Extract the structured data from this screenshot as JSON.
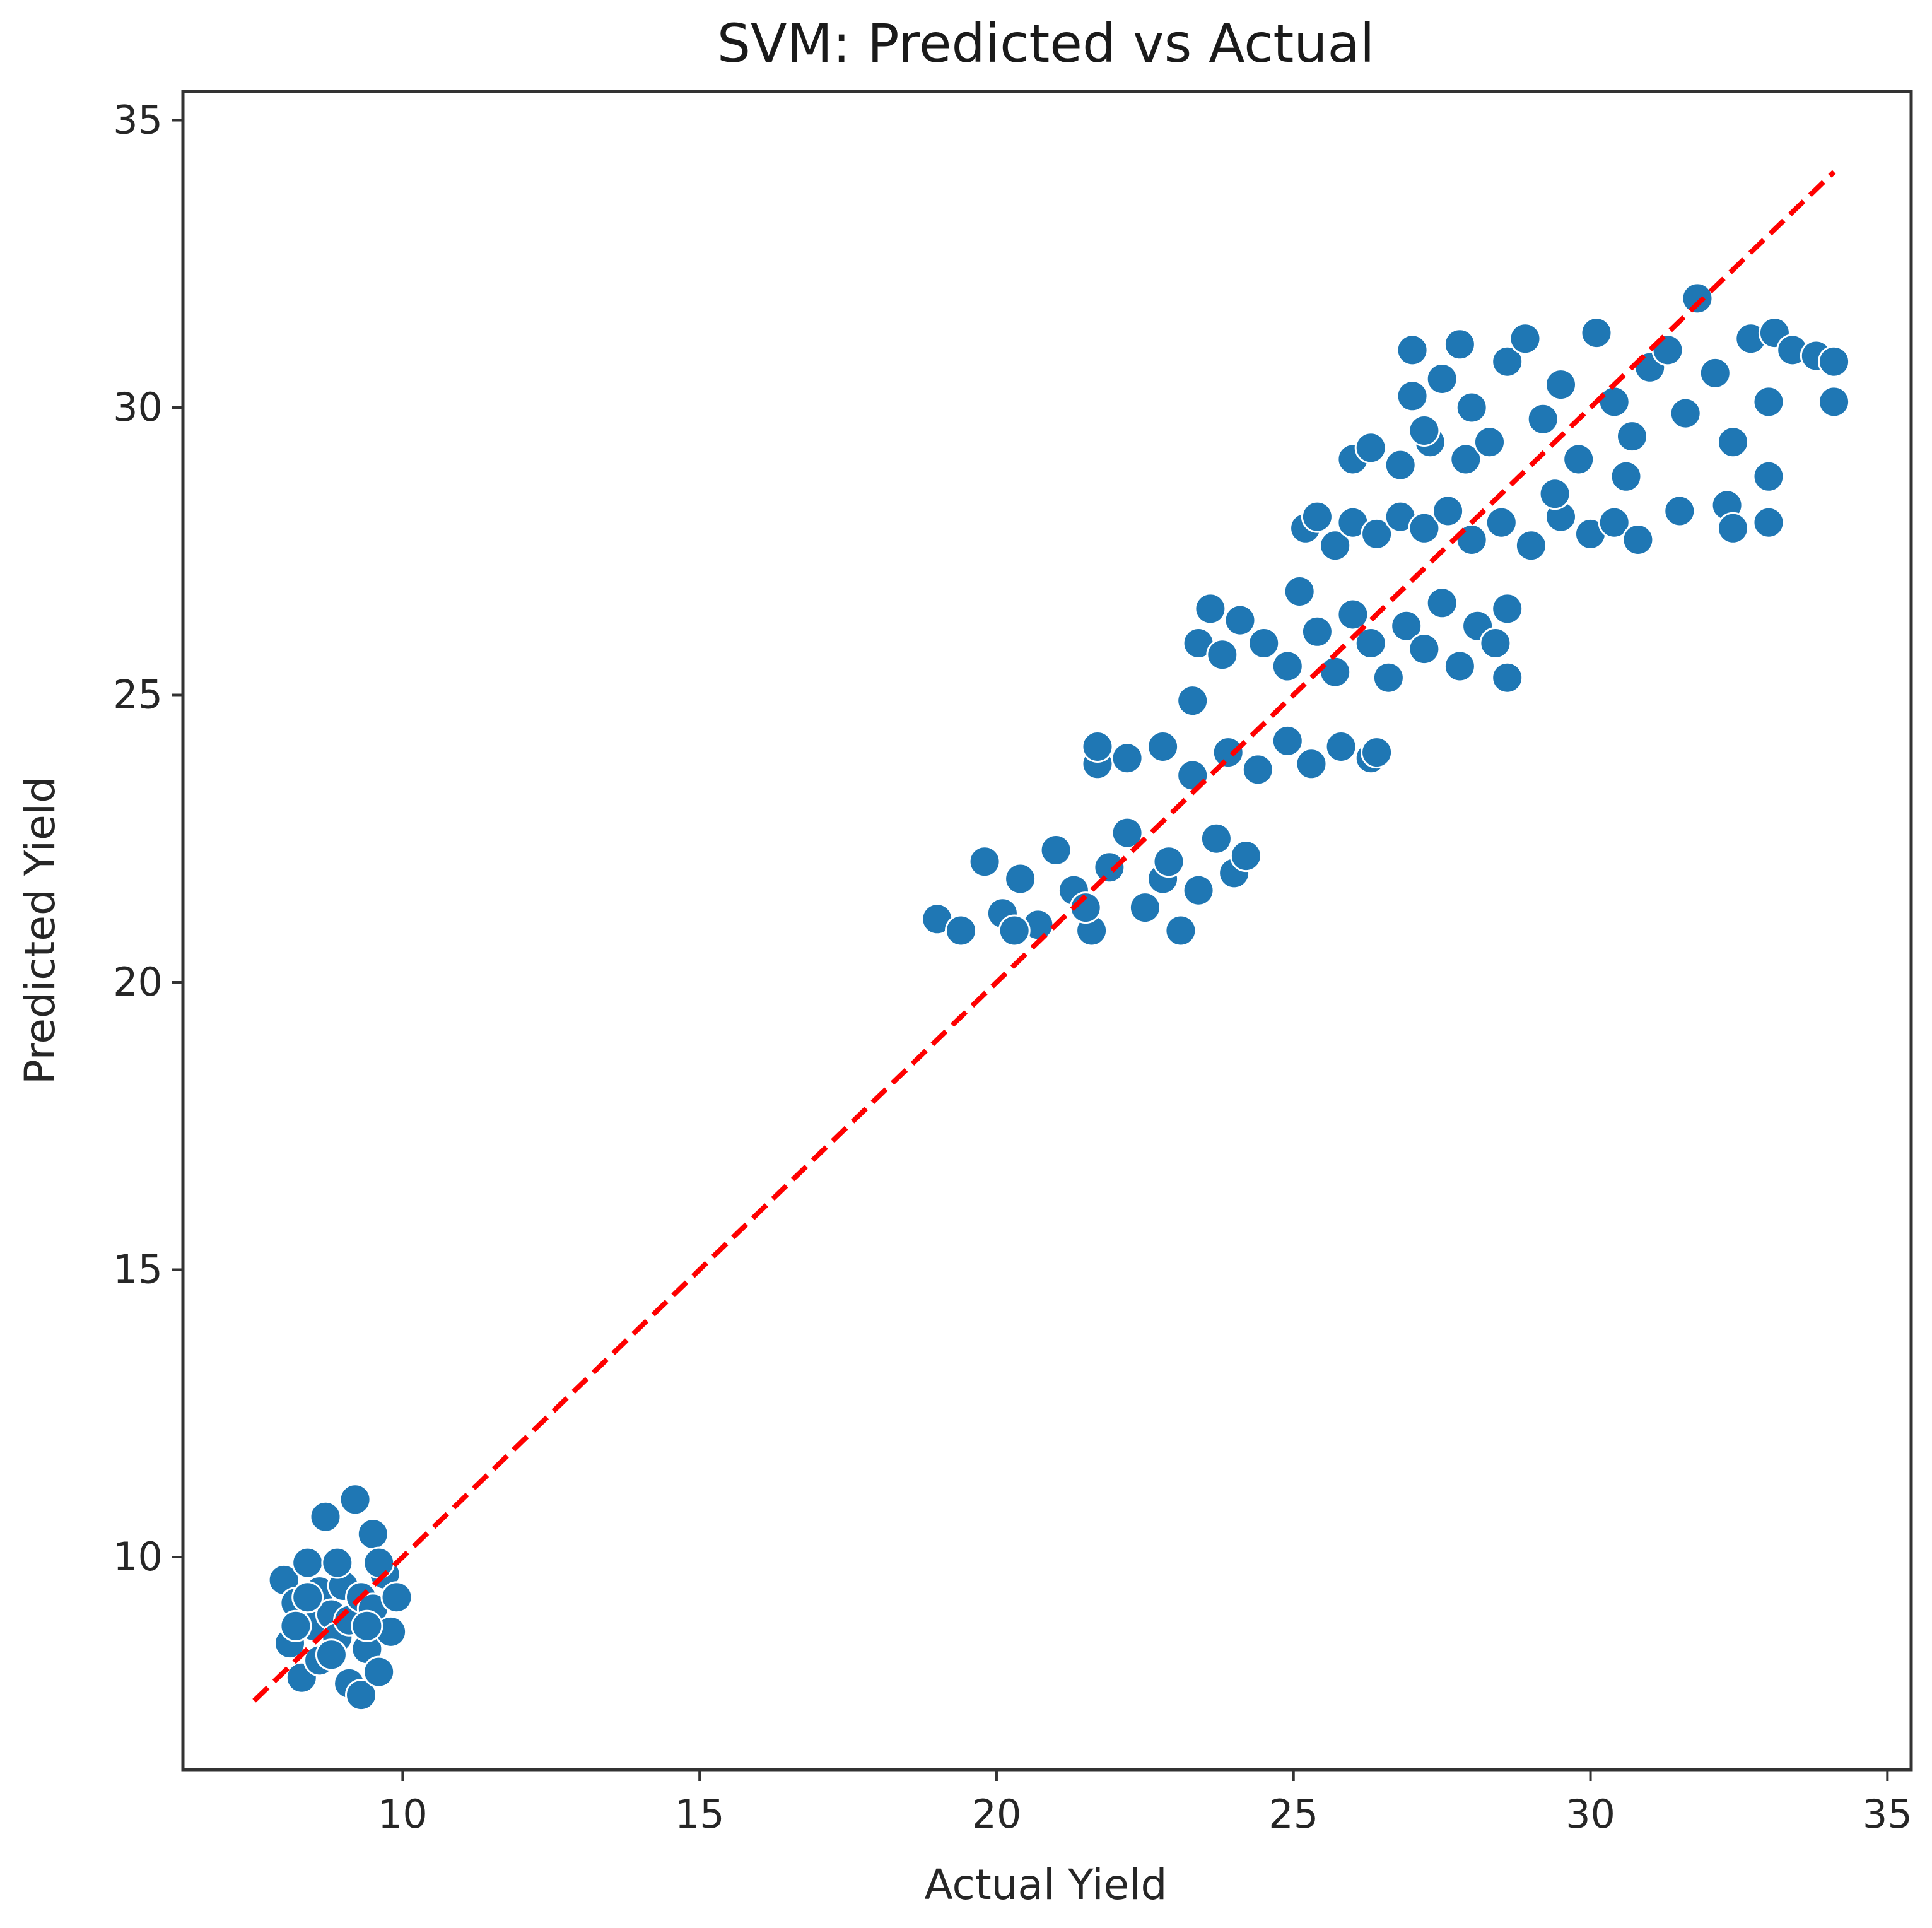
{
  "chart_data": {
    "type": "scatter",
    "title": "SVM: Predicted vs Actual",
    "xlabel": "Actual Yield",
    "ylabel": "Predicted Yield",
    "xlim": [
      6.3,
      35.4
    ],
    "ylim": [
      6.3,
      35.5
    ],
    "xticks": [
      10,
      15,
      20,
      25,
      30,
      35
    ],
    "yticks": [
      10,
      15,
      20,
      25,
      30,
      35
    ],
    "grid": false,
    "reference_line": {
      "x": [
        7.5,
        34.1
      ],
      "y": [
        7.5,
        34.1
      ],
      "color": "#ff0000",
      "style": "dashed"
    },
    "series": [
      {
        "color": "#1f77b4",
        "points": [
          [
            8.0,
            9.6
          ],
          [
            8.1,
            8.5
          ],
          [
            8.2,
            9.2
          ],
          [
            8.3,
            7.9
          ],
          [
            8.4,
            9.9
          ],
          [
            8.5,
            8.8
          ],
          [
            8.6,
            9.4
          ],
          [
            8.6,
            8.2
          ],
          [
            8.7,
            10.7
          ],
          [
            8.8,
            9.0
          ],
          [
            8.9,
            8.6
          ],
          [
            9.0,
            9.5
          ],
          [
            9.1,
            7.8
          ],
          [
            9.1,
            8.9
          ],
          [
            9.2,
            11.0
          ],
          [
            9.3,
            9.3
          ],
          [
            9.3,
            7.6
          ],
          [
            9.4,
            8.4
          ],
          [
            9.5,
            10.4
          ],
          [
            9.5,
            9.1
          ],
          [
            9.6,
            8.0
          ],
          [
            9.7,
            9.7
          ],
          [
            9.8,
            8.7
          ],
          [
            9.9,
            9.3
          ],
          [
            8.2,
            8.8
          ],
          [
            8.4,
            9.3
          ],
          [
            8.9,
            9.9
          ],
          [
            9.6,
            9.9
          ],
          [
            8.8,
            8.3
          ],
          [
            9.4,
            8.8
          ],
          [
            19.0,
            21.1
          ],
          [
            19.4,
            20.9
          ],
          [
            19.8,
            22.1
          ],
          [
            20.1,
            21.2
          ],
          [
            20.4,
            21.8
          ],
          [
            20.7,
            21.0
          ],
          [
            21.0,
            22.3
          ],
          [
            21.3,
            21.6
          ],
          [
            21.6,
            20.9
          ],
          [
            21.9,
            22.0
          ],
          [
            22.2,
            22.6
          ],
          [
            22.5,
            21.3
          ],
          [
            22.8,
            21.8
          ],
          [
            23.1,
            20.9
          ],
          [
            23.4,
            21.6
          ],
          [
            23.7,
            22.5
          ],
          [
            24.0,
            21.9
          ],
          [
            24.2,
            22.2
          ],
          [
            20.3,
            20.9
          ],
          [
            21.5,
            21.3
          ],
          [
            22.9,
            22.1
          ],
          [
            21.7,
            23.8
          ],
          [
            21.7,
            24.1
          ],
          [
            22.2,
            23.9
          ],
          [
            22.8,
            24.1
          ],
          [
            23.3,
            23.6
          ],
          [
            23.9,
            24.0
          ],
          [
            24.4,
            23.7
          ],
          [
            24.9,
            24.2
          ],
          [
            25.3,
            23.8
          ],
          [
            25.8,
            24.1
          ],
          [
            26.3,
            23.9
          ],
          [
            26.4,
            24.0
          ],
          [
            23.4,
            25.9
          ],
          [
            23.6,
            26.5
          ],
          [
            23.8,
            25.7
          ],
          [
            24.1,
            26.3
          ],
          [
            24.5,
            25.9
          ],
          [
            24.9,
            25.5
          ],
          [
            25.1,
            26.8
          ],
          [
            25.4,
            26.1
          ],
          [
            25.7,
            25.4
          ],
          [
            26.0,
            26.4
          ],
          [
            26.3,
            25.9
          ],
          [
            26.6,
            25.3
          ],
          [
            26.9,
            26.2
          ],
          [
            27.2,
            25.8
          ],
          [
            27.5,
            26.6
          ],
          [
            27.8,
            25.5
          ],
          [
            28.1,
            26.2
          ],
          [
            28.4,
            25.9
          ],
          [
            28.6,
            26.5
          ],
          [
            28.6,
            25.3
          ],
          [
            23.3,
            24.9
          ],
          [
            25.2,
            27.9
          ],
          [
            25.4,
            28.1
          ],
          [
            25.7,
            27.6
          ],
          [
            26.0,
            28.0
          ],
          [
            26.4,
            27.8
          ],
          [
            26.8,
            28.1
          ],
          [
            27.2,
            27.9
          ],
          [
            27.6,
            28.2
          ],
          [
            28.0,
            27.7
          ],
          [
            28.5,
            28.0
          ],
          [
            29.0,
            27.6
          ],
          [
            29.5,
            28.1
          ],
          [
            30.0,
            27.8
          ],
          [
            30.4,
            28.0
          ],
          [
            30.8,
            27.7
          ],
          [
            26.0,
            29.1
          ],
          [
            26.3,
            29.3
          ],
          [
            26.8,
            29.0
          ],
          [
            27.3,
            29.4
          ],
          [
            27.9,
            29.1
          ],
          [
            27.0,
            31.0
          ],
          [
            27.0,
            30.2
          ],
          [
            27.2,
            29.6
          ],
          [
            27.5,
            30.5
          ],
          [
            27.8,
            31.1
          ],
          [
            28.0,
            30.0
          ],
          [
            28.3,
            29.4
          ],
          [
            28.6,
            30.8
          ],
          [
            28.9,
            31.2
          ],
          [
            29.2,
            29.8
          ],
          [
            29.5,
            30.4
          ],
          [
            29.8,
            29.1
          ],
          [
            30.1,
            31.3
          ],
          [
            30.4,
            30.1
          ],
          [
            30.7,
            29.5
          ],
          [
            31.0,
            30.7
          ],
          [
            31.3,
            31.0
          ],
          [
            31.6,
            29.9
          ],
          [
            31.8,
            31.9
          ],
          [
            32.1,
            30.6
          ],
          [
            32.4,
            29.4
          ],
          [
            32.7,
            31.2
          ],
          [
            33.0,
            30.1
          ],
          [
            33.0,
            28.8
          ],
          [
            33.1,
            31.3
          ],
          [
            33.4,
            31.0
          ],
          [
            33.8,
            30.9
          ],
          [
            34.1,
            30.1
          ],
          [
            34.1,
            30.8
          ],
          [
            32.3,
            28.3
          ],
          [
            32.4,
            27.9
          ],
          [
            33.0,
            28.0
          ],
          [
            31.5,
            28.2
          ],
          [
            29.4,
            28.5
          ],
          [
            30.6,
            28.8
          ]
        ]
      }
    ]
  }
}
